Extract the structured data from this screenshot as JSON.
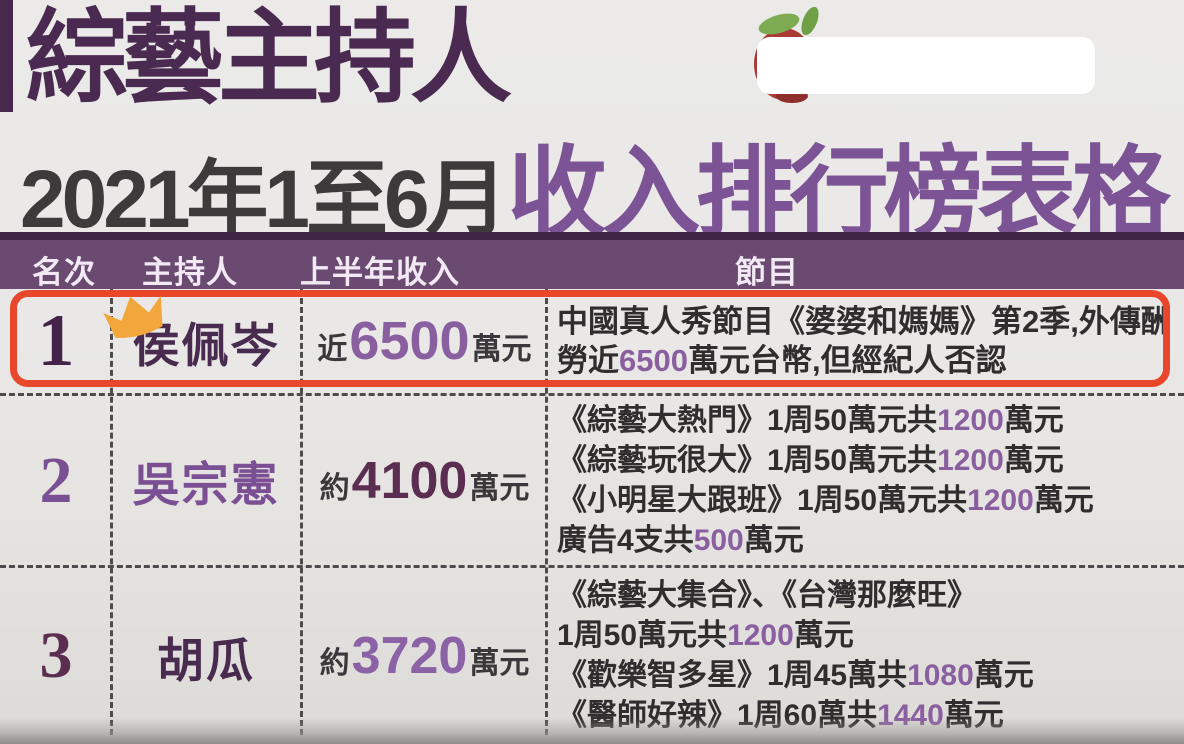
{
  "title": {
    "line1": "綜藝主持人",
    "line2_left": "2021年1至6月",
    "line2_right": "收入排行榜表格"
  },
  "logo": {
    "icon": "apple-icon",
    "redaction": "white-rounded-box"
  },
  "table": {
    "headers": [
      "名次",
      "主持人",
      "上半年收入",
      "節目"
    ],
    "rows": [
      {
        "rank": "1",
        "host": "侯佩岑",
        "income": {
          "prefix": "近",
          "amount": "6500",
          "suffix": "萬元"
        },
        "highlighted": true,
        "crown": true,
        "programs": [
          [
            {
              "t": "中國真人秀節目《婆婆和媽媽》第2季,外傳酬"
            }
          ],
          [
            {
              "t": "勞近"
            },
            {
              "t": "6500",
              "em": true
            },
            {
              "t": "萬元台幣,但經紀人否認"
            }
          ]
        ]
      },
      {
        "rank": "2",
        "host": "吳宗憲",
        "income": {
          "prefix": "約",
          "amount": "4100",
          "suffix": "萬元"
        },
        "highlighted": false,
        "crown": false,
        "programs": [
          [
            {
              "t": "《綜藝大熱門》1周50萬元共"
            },
            {
              "t": "1200",
              "em": true
            },
            {
              "t": "萬元"
            }
          ],
          [
            {
              "t": "《綜藝玩很大》1周50萬元共"
            },
            {
              "t": "1200",
              "em": true
            },
            {
              "t": "萬元"
            }
          ],
          [
            {
              "t": "《小明星大跟班》1周50萬元共"
            },
            {
              "t": "1200",
              "em": true
            },
            {
              "t": "萬元"
            }
          ],
          [
            {
              "t": "廣告4支共"
            },
            {
              "t": "500",
              "em": true
            },
            {
              "t": "萬元"
            }
          ]
        ]
      },
      {
        "rank": "3",
        "host": "胡瓜",
        "income": {
          "prefix": "約",
          "amount": "3720",
          "suffix": "萬元"
        },
        "highlighted": false,
        "crown": false,
        "programs": [
          [
            {
              "t": "《綜藝大集合》、《台灣那麼旺》"
            }
          ],
          [
            {
              "t": "1周50萬元共"
            },
            {
              "t": "1200",
              "em": true
            },
            {
              "t": "萬元"
            }
          ],
          [
            {
              "t": "《歡樂智多星》1周45萬共"
            },
            {
              "t": "1080",
              "em": true
            },
            {
              "t": "萬元"
            }
          ],
          [
            {
              "t": "《醫師好辣》1周60萬共"
            },
            {
              "t": "1440",
              "em": true
            },
            {
              "t": "萬元"
            }
          ]
        ]
      }
    ]
  },
  "chart_data": {
    "type": "table",
    "title": "綜藝主持人2021年1至6月收入排行榜表格",
    "columns": [
      "名次",
      "主持人",
      "上半年收入",
      "節目"
    ],
    "rows": [
      {
        "rank": 1,
        "host": "侯佩岑",
        "income": "近6500萬元",
        "income_wan_twd": 6500,
        "programs": [
          "中國真人秀節目《婆婆和媽媽》第2季,外傳酬勞近6500萬元台幣,但經紀人否認"
        ]
      },
      {
        "rank": 2,
        "host": "吳宗憲",
        "income": "約4100萬元",
        "income_wan_twd": 4100,
        "programs": [
          "《綜藝大熱門》1周50萬元共1200萬元",
          "《綜藝玩很大》1周50萬元共1200萬元",
          "《小明星大跟班》1周50萬元共1200萬元",
          "廣告4支共500萬元"
        ]
      },
      {
        "rank": 3,
        "host": "胡瓜",
        "income": "約3720萬元",
        "income_wan_twd": 3720,
        "programs": [
          "《綜藝大集合》、《台灣那麼旺》",
          "1周50萬元共1200萬元",
          "《歡樂智多星》1周45萬共1080萬元",
          "《醫師好辣》1周60萬共1440萬元"
        ]
      }
    ]
  },
  "colors": {
    "background": "#e9e8e6",
    "title_purple_dark": "#4b2a51",
    "title_purple_light": "#7c5394",
    "title_gray": "#3c3a3b",
    "header_bg": "#6a4a71",
    "header_top_border": "#3f2446",
    "header_text": "#f2e9f4",
    "highlight_red": "#e9472c",
    "crown_gold": "#f2a73c",
    "rank1": "#44224a",
    "rank2": "#7b4f94",
    "rank3": "#5b2d51",
    "amount1": "#8a5fa0",
    "amount2": "#5b2d51",
    "amount3": "#8a62a5",
    "program_number_purple": "#8a5fa0",
    "program_text": "#2f2d2e",
    "apple_red": "#a93b34",
    "leaf_green": "#7dab51"
  }
}
